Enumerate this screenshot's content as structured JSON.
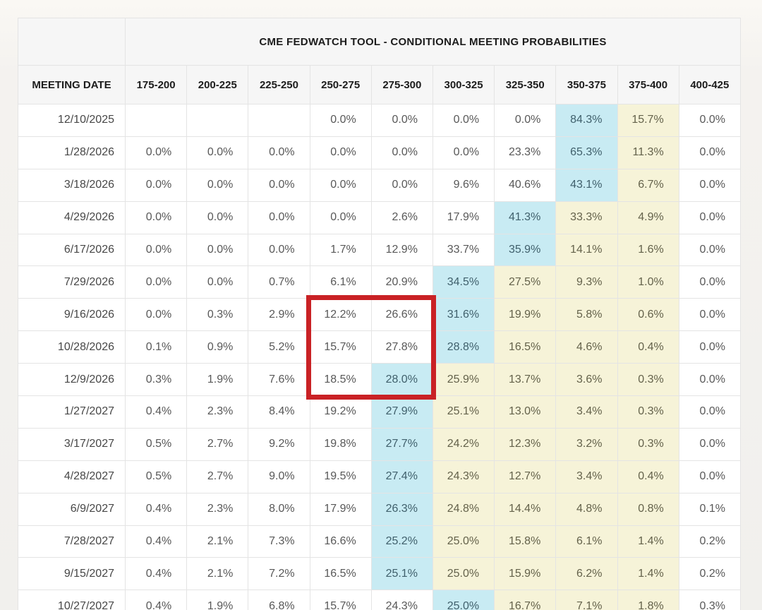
{
  "chart_data": {
    "type": "table",
    "title": "CME FEDWATCH TOOL - CONDITIONAL MEETING PROBABILITIES",
    "columns": [
      "MEETING DATE",
      "175-200",
      "200-225",
      "225-250",
      "250-275",
      "275-300",
      "300-325",
      "325-350",
      "350-375",
      "375-400",
      "400-425"
    ],
    "rows": [
      {
        "date": "12/10/2025",
        "values": [
          "",
          "",
          "",
          "0.0%",
          "0.0%",
          "0.0%",
          "0.0%",
          "84.3%",
          "15.7%",
          "0.0%"
        ],
        "highlights": [
          "",
          "",
          "",
          "",
          "",
          "",
          "",
          "b",
          "y",
          ""
        ]
      },
      {
        "date": "1/28/2026",
        "values": [
          "0.0%",
          "0.0%",
          "0.0%",
          "0.0%",
          "0.0%",
          "0.0%",
          "23.3%",
          "65.3%",
          "11.3%",
          "0.0%"
        ],
        "highlights": [
          "",
          "",
          "",
          "",
          "",
          "",
          "",
          "b",
          "y",
          ""
        ]
      },
      {
        "date": "3/18/2026",
        "values": [
          "0.0%",
          "0.0%",
          "0.0%",
          "0.0%",
          "0.0%",
          "9.6%",
          "40.6%",
          "43.1%",
          "6.7%",
          "0.0%"
        ],
        "highlights": [
          "",
          "",
          "",
          "",
          "",
          "",
          "",
          "b",
          "y",
          ""
        ]
      },
      {
        "date": "4/29/2026",
        "values": [
          "0.0%",
          "0.0%",
          "0.0%",
          "0.0%",
          "2.6%",
          "17.9%",
          "41.3%",
          "33.3%",
          "4.9%",
          "0.0%"
        ],
        "highlights": [
          "",
          "",
          "",
          "",
          "",
          "",
          "b",
          "y",
          "y",
          ""
        ]
      },
      {
        "date": "6/17/2026",
        "values": [
          "0.0%",
          "0.0%",
          "0.0%",
          "1.7%",
          "12.9%",
          "33.7%",
          "35.9%",
          "14.1%",
          "1.6%",
          "0.0%"
        ],
        "highlights": [
          "",
          "",
          "",
          "",
          "",
          "",
          "b",
          "y",
          "y",
          ""
        ]
      },
      {
        "date": "7/29/2026",
        "values": [
          "0.0%",
          "0.0%",
          "0.7%",
          "6.1%",
          "20.9%",
          "34.5%",
          "27.5%",
          "9.3%",
          "1.0%",
          "0.0%"
        ],
        "highlights": [
          "",
          "",
          "",
          "",
          "",
          "b",
          "y",
          "y",
          "y",
          ""
        ]
      },
      {
        "date": "9/16/2026",
        "values": [
          "0.0%",
          "0.3%",
          "2.9%",
          "12.2%",
          "26.6%",
          "31.6%",
          "19.9%",
          "5.8%",
          "0.6%",
          "0.0%"
        ],
        "highlights": [
          "",
          "",
          "",
          "",
          "",
          "b",
          "y",
          "y",
          "y",
          ""
        ]
      },
      {
        "date": "10/28/2026",
        "values": [
          "0.1%",
          "0.9%",
          "5.2%",
          "15.7%",
          "27.8%",
          "28.8%",
          "16.5%",
          "4.6%",
          "0.4%",
          "0.0%"
        ],
        "highlights": [
          "",
          "",
          "",
          "",
          "",
          "b",
          "y",
          "y",
          "y",
          ""
        ]
      },
      {
        "date": "12/9/2026",
        "values": [
          "0.3%",
          "1.9%",
          "7.6%",
          "18.5%",
          "28.0%",
          "25.9%",
          "13.7%",
          "3.6%",
          "0.3%",
          "0.0%"
        ],
        "highlights": [
          "",
          "",
          "",
          "",
          "b",
          "y",
          "y",
          "y",
          "y",
          ""
        ]
      },
      {
        "date": "1/27/2027",
        "values": [
          "0.4%",
          "2.3%",
          "8.4%",
          "19.2%",
          "27.9%",
          "25.1%",
          "13.0%",
          "3.4%",
          "0.3%",
          "0.0%"
        ],
        "highlights": [
          "",
          "",
          "",
          "",
          "b",
          "y",
          "y",
          "y",
          "y",
          ""
        ]
      },
      {
        "date": "3/17/2027",
        "values": [
          "0.5%",
          "2.7%",
          "9.2%",
          "19.8%",
          "27.7%",
          "24.2%",
          "12.3%",
          "3.2%",
          "0.3%",
          "0.0%"
        ],
        "highlights": [
          "",
          "",
          "",
          "",
          "b",
          "y",
          "y",
          "y",
          "y",
          ""
        ]
      },
      {
        "date": "4/28/2027",
        "values": [
          "0.5%",
          "2.7%",
          "9.0%",
          "19.5%",
          "27.4%",
          "24.3%",
          "12.7%",
          "3.4%",
          "0.4%",
          "0.0%"
        ],
        "highlights": [
          "",
          "",
          "",
          "",
          "b",
          "y",
          "y",
          "y",
          "y",
          ""
        ]
      },
      {
        "date": "6/9/2027",
        "values": [
          "0.4%",
          "2.3%",
          "8.0%",
          "17.9%",
          "26.3%",
          "24.8%",
          "14.4%",
          "4.8%",
          "0.8%",
          "0.1%"
        ],
        "highlights": [
          "",
          "",
          "",
          "",
          "b",
          "y",
          "y",
          "y",
          "y",
          ""
        ]
      },
      {
        "date": "7/28/2027",
        "values": [
          "0.4%",
          "2.1%",
          "7.3%",
          "16.6%",
          "25.2%",
          "25.0%",
          "15.8%",
          "6.1%",
          "1.4%",
          "0.2%"
        ],
        "highlights": [
          "",
          "",
          "",
          "",
          "b",
          "y",
          "y",
          "y",
          "y",
          ""
        ]
      },
      {
        "date": "9/15/2027",
        "values": [
          "0.4%",
          "2.1%",
          "7.2%",
          "16.5%",
          "25.1%",
          "25.0%",
          "15.9%",
          "6.2%",
          "1.4%",
          "0.2%"
        ],
        "highlights": [
          "",
          "",
          "",
          "",
          "b",
          "y",
          "y",
          "y",
          "y",
          ""
        ]
      },
      {
        "date": "10/27/2027",
        "values": [
          "0.4%",
          "1.9%",
          "6.8%",
          "15.7%",
          "24.3%",
          "25.0%",
          "16.7%",
          "7.1%",
          "1.8%",
          "0.3%"
        ],
        "highlights": [
          "",
          "",
          "",
          "",
          "",
          "b",
          "y",
          "y",
          "y",
          ""
        ]
      }
    ],
    "highlight_legend": {
      "b": "highest probability cell in row (light blue)",
      "y": "cells right of the highest probability up to 375-400 (pale yellow)"
    }
  },
  "annotation": {
    "shape": "red-rectangle",
    "color": "#c92125",
    "row_labels": [
      "9/16/2026",
      "10/28/2026",
      "12/9/2026"
    ],
    "column_labels": [
      "250-275",
      "275-300"
    ],
    "row_start_index": 6,
    "row_end_index": 8,
    "col_start_index": 3,
    "col_end_index": 4
  },
  "colors": {
    "highlight_blue": "#c8ebf3",
    "highlight_yellow": "#f6f3d8",
    "annotation_red": "#c92125",
    "header_bg": "#f6f6f6",
    "grid_line": "#e4e4e4",
    "page_bg": "#f1f0ed"
  }
}
